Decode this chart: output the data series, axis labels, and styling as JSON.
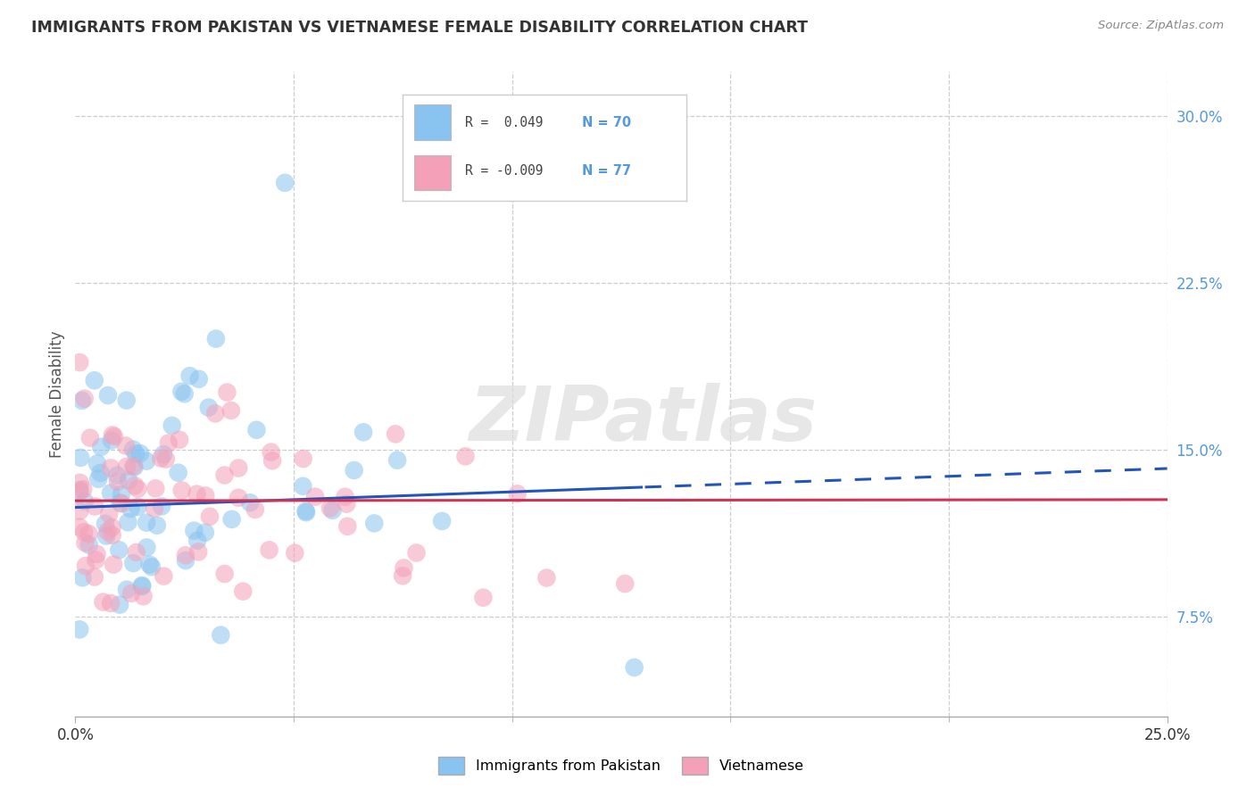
{
  "title": "IMMIGRANTS FROM PAKISTAN VS VIETNAMESE FEMALE DISABILITY CORRELATION CHART",
  "source": "Source: ZipAtlas.com",
  "ylabel": "Female Disability",
  "xlim": [
    0.0,
    0.25
  ],
  "ylim": [
    0.03,
    0.32
  ],
  "yticks": [
    0.075,
    0.15,
    0.225,
    0.3
  ],
  "ytick_labels": [
    "7.5%",
    "15.0%",
    "22.5%",
    "30.0%"
  ],
  "bg_color": "#ffffff",
  "grid_color": "#c8c8c8",
  "watermark_text": "ZIPatlas",
  "blue_color": "#89C4F0",
  "pink_color": "#F4A0B8",
  "blue_line_color": "#2255BB",
  "pink_line_color": "#CC3355",
  "legend_R_blue": " 0.049",
  "legend_N_blue": "70",
  "legend_R_pink": "-0.009",
  "legend_N_pink": "77",
  "tick_label_color": "#5599DD",
  "blue_line_solid_end": 0.13,
  "blue_line_start_y": 0.125,
  "blue_line_slope": 0.04,
  "pink_line_start_y": 0.127,
  "pink_line_slope": 0.002
}
